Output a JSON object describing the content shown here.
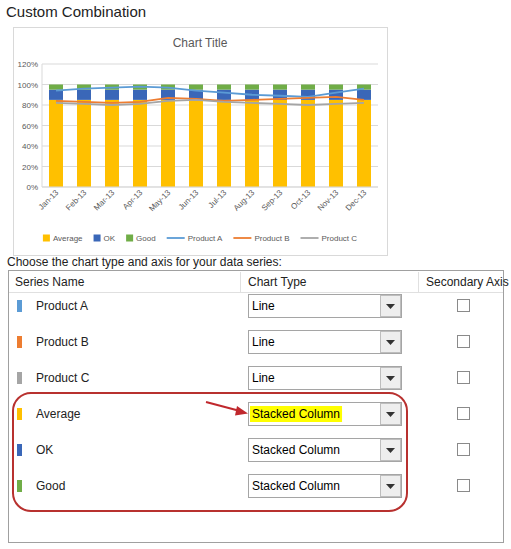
{
  "heading": "Custom Combination",
  "chart_data": {
    "type": "bar",
    "title": "Chart Title",
    "stacked": true,
    "grid": true,
    "legend": "bottom",
    "categories": [
      "Jan-13",
      "Feb-13",
      "Mar-13",
      "Apr-13",
      "May-13",
      "Jun-13",
      "Jul-13",
      "Aug-13",
      "Sep-13",
      "Oct-13",
      "Nov-13",
      "Dec-13"
    ],
    "ylim": [
      0,
      120
    ],
    "yticks": [
      {
        "value": 0,
        "label": "0%"
      },
      {
        "value": 20,
        "label": "20%"
      },
      {
        "value": 40,
        "label": "40%"
      },
      {
        "value": 60,
        "label": "60%"
      },
      {
        "value": 80,
        "label": "80%"
      },
      {
        "value": 100,
        "label": "100%"
      },
      {
        "value": 120,
        "label": "120%"
      }
    ],
    "series": [
      {
        "name": "Average",
        "type": "bar",
        "color": "#ffc000",
        "values": [
          85,
          85,
          85,
          85,
          85,
          85,
          85,
          85,
          85,
          85,
          85,
          85
        ]
      },
      {
        "name": "OK",
        "type": "bar",
        "color": "#3a67b8",
        "values": [
          10,
          10,
          10,
          10,
          10,
          10,
          10,
          10,
          10,
          10,
          10,
          10
        ]
      },
      {
        "name": "Good",
        "type": "bar",
        "color": "#70ad47",
        "values": [
          5,
          5,
          5,
          5,
          5,
          5,
          5,
          5,
          5,
          5,
          5,
          5
        ]
      },
      {
        "name": "Product A",
        "type": "line",
        "color": "#5b9bd5",
        "values": [
          94,
          96,
          97,
          98,
          97,
          94,
          92,
          90,
          89,
          88,
          92,
          96
        ]
      },
      {
        "name": "Product B",
        "type": "line",
        "color": "#ed7d31",
        "values": [
          84,
          83,
          82,
          83,
          87,
          86,
          84,
          85,
          86,
          87,
          88,
          85
        ]
      },
      {
        "name": "Product C",
        "type": "line",
        "color": "#a5a5a5",
        "values": [
          82,
          81,
          80,
          81,
          84,
          85,
          83,
          82,
          81,
          80,
          81,
          82
        ]
      }
    ]
  },
  "instruction": "Choose the chart type and axis for your data series:",
  "table": {
    "columns": [
      "Series Name",
      "Chart Type",
      "Secondary Axis"
    ],
    "rows": [
      {
        "series": "Product A",
        "color": "#5b9bd5",
        "chart_type": "Line",
        "secondary_axis": false
      },
      {
        "series": "Product B",
        "color": "#ed7d31",
        "chart_type": "Line",
        "secondary_axis": false
      },
      {
        "series": "Product C",
        "color": "#a5a5a5",
        "chart_type": "Line",
        "secondary_axis": false
      },
      {
        "series": "Average",
        "color": "#ffc000",
        "chart_type": "Stacked Column",
        "secondary_axis": false
      },
      {
        "series": "OK",
        "color": "#3a67b8",
        "chart_type": "Stacked Column",
        "secondary_axis": false
      },
      {
        "series": "Good",
        "color": "#70ad47",
        "chart_type": "Stacked Column",
        "secondary_axis": false
      }
    ]
  }
}
